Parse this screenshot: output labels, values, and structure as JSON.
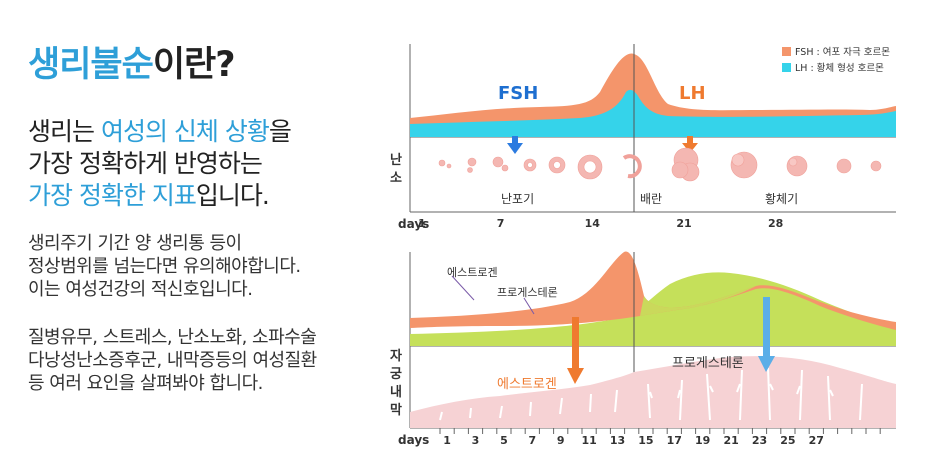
{
  "title": {
    "highlight": "생리불순",
    "rest": "이란?"
  },
  "lead": {
    "line1_plain": "생리는 ",
    "line1_hl": "여성의 신체 상황",
    "line1_end": "을",
    "line2": "가장 정확하게 반영하는",
    "line3_hl": "가장 정확한 지표",
    "line3_end": "입니다."
  },
  "para1": [
    "생리주기 기간 양 생리통 등이",
    "정상범위를 넘는다면 유의해야합니다.",
    "이는 여성건강의 적신호입니다."
  ],
  "para2": [
    "질병유무, 스트레스, 난소노화, 소파수술",
    "다낭성난소증후군, 내막증등의 여성질환",
    "등 여러 요인을 살펴봐야 합니다."
  ],
  "chart_top": {
    "legend": [
      {
        "label": "FSH : 여포 자극 호르몬",
        "color": "#f4956b"
      },
      {
        "label": "LH : 황체 형성 호르몬",
        "color": "#35d3ea"
      }
    ],
    "label_fsh": "FSH",
    "label_lh": "LH",
    "ovary_label": [
      "난",
      "소"
    ],
    "phase_labels": [
      "난포기",
      "배란",
      "황체기"
    ],
    "days_label": "days",
    "days_ticks": [
      "1",
      "7",
      "14",
      "21",
      "28"
    ],
    "colors": {
      "fsh_text": "#1e6fd0",
      "lh_text": "#ef7a2f",
      "arrow_blue": "#2c7be0",
      "arrow_orange": "#ef7a2f"
    }
  },
  "chart_bottom": {
    "label_estrogen": "에스트로겐",
    "label_progesterone": "프로게스테론",
    "arrow_estrogen": "에스트로겐",
    "arrow_progesterone": "프로게스테론",
    "uterus_label": [
      "자",
      "궁",
      "내",
      "막"
    ],
    "days_label": "days",
    "days_ticks": [
      "1",
      "3",
      "5",
      "7",
      "9",
      "11",
      "13",
      "15",
      "17",
      "19",
      "21",
      "23",
      "25",
      "27"
    ],
    "colors": {
      "estrogen": "#f4956b",
      "progesterone": "#c5e05a",
      "arrow_estrogen": "#ef7a2f",
      "arrow_progesterone": "#5aaee8",
      "endometrium": "#f6d2d4"
    }
  }
}
